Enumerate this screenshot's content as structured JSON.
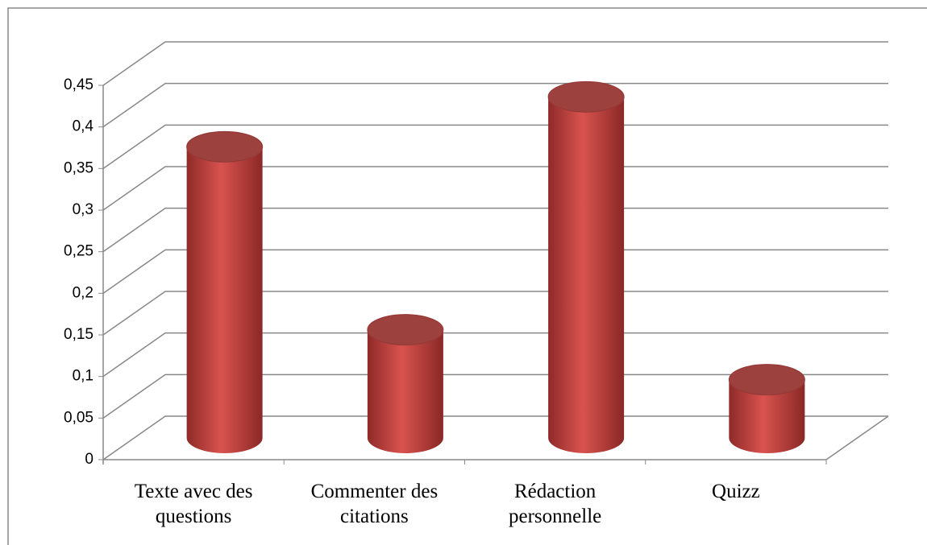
{
  "chart_data": {
    "type": "bar3d-cylinder",
    "categories": [
      "Texte avec des questions",
      "Commenter des citations",
      "Rédaction personnelle",
      "Quizz"
    ],
    "values": [
      0.35,
      0.13,
      0.41,
      0.07
    ],
    "color": "#c0504d",
    "ylim": [
      0,
      0.45
    ],
    "yticks": [
      0,
      {
        "value": 0.05,
        "label": "0,05"
      },
      {
        "value": 0.1,
        "label": "0,1"
      },
      {
        "value": 0.15,
        "label": "0,15"
      },
      {
        "value": 0.2,
        "label": "0,2"
      },
      {
        "value": 0.25,
        "label": "0,25"
      },
      {
        "value": 0.3,
        "label": "0,3"
      },
      {
        "value": 0.35,
        "label": "0,35"
      },
      {
        "value": 0.4,
        "label": "0,4"
      },
      {
        "value": 0.45,
        "label": "0,45"
      }
    ],
    "grid": true
  }
}
